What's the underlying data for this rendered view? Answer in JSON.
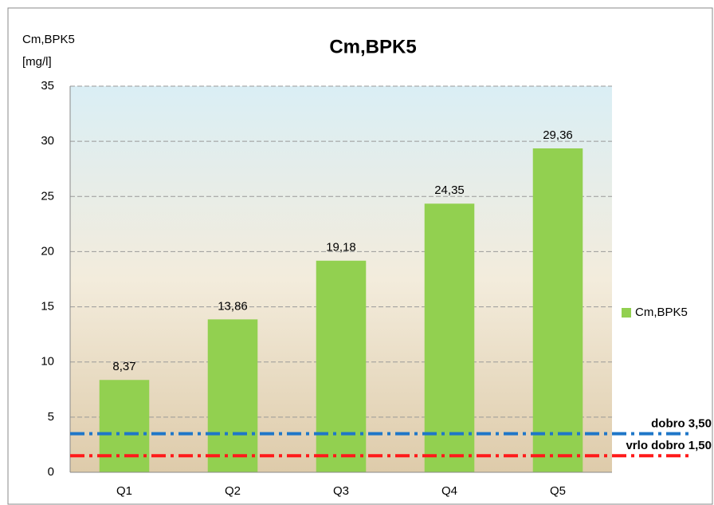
{
  "chart_data": {
    "type": "bar",
    "title": "Cm,BPK5",
    "y_label": "Cm,BPK5",
    "y_unit": "[mg/l]",
    "categories": [
      "Q1",
      "Q2",
      "Q3",
      "Q4",
      "Q5"
    ],
    "series": [
      {
        "name": "Cm,BPK5",
        "color": "#92d050",
        "values": [
          8.37,
          13.86,
          19.18,
          24.35,
          29.36
        ],
        "value_labels": [
          "8,37",
          "13,86",
          "19,18",
          "24,35",
          "29,36"
        ]
      }
    ],
    "ylim": [
      0,
      35
    ],
    "yticks": [
      0,
      5,
      10,
      15,
      20,
      25,
      30,
      35
    ],
    "grid": true,
    "legend": "right",
    "reference_lines": [
      {
        "label": "dobro 3,50",
        "value": 3.5,
        "color": "#1f77c8"
      },
      {
        "label": "vrlo dobro 1,50",
        "value": 1.5,
        "color": "#ff1a1a"
      }
    ]
  }
}
